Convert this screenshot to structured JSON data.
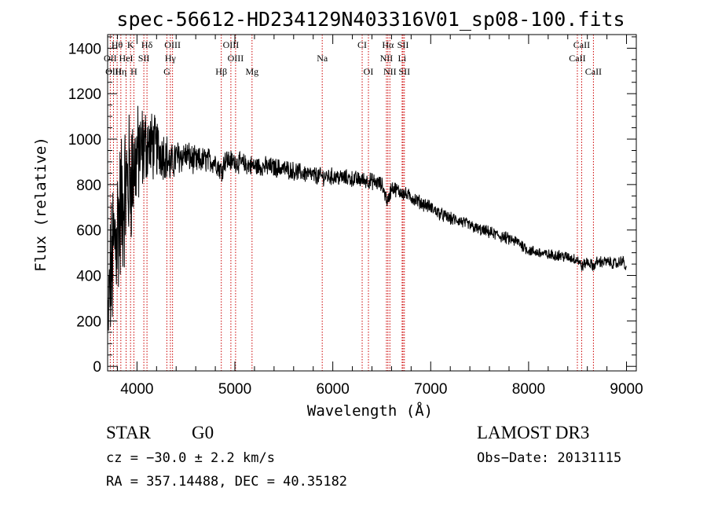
{
  "chart_data": {
    "type": "line",
    "title": "spec-56612-HD234129N403316V01_sp08-100.fits",
    "xlabel": "Wavelength (Å)",
    "ylabel": "Flux (relative)",
    "xlim": [
      3700,
      9100
    ],
    "ylim": [
      -20,
      1460
    ],
    "xticks": [
      4000,
      5000,
      6000,
      7000,
      8000,
      9000
    ],
    "yticks": [
      0,
      200,
      400,
      600,
      800,
      1000,
      1200,
      1400
    ],
    "spectrum_anchor_points": {
      "wavelength": [
        3700,
        3720,
        3760,
        3800,
        3850,
        3900,
        3950,
        4000,
        4050,
        4100,
        4200,
        4300,
        4340,
        4400,
        4500,
        4600,
        4700,
        4800,
        4861,
        4900,
        5000,
        5100,
        5200,
        5300,
        5400,
        5500,
        5600,
        5700,
        5800,
        5900,
        6000,
        6100,
        6200,
        6300,
        6400,
        6500,
        6563,
        6600,
        6700,
        6800,
        6900,
        7000,
        7100,
        7200,
        7300,
        7400,
        7500,
        7600,
        7700,
        7800,
        7900,
        8000,
        8100,
        8200,
        8300,
        8400,
        8500,
        8542,
        8600,
        8662,
        8700,
        8800,
        8900,
        8960,
        9000
      ],
      "flux": [
        150,
        350,
        500,
        620,
        720,
        800,
        850,
        920,
        950,
        980,
        960,
        930,
        880,
        920,
        930,
        900,
        910,
        900,
        860,
        910,
        900,
        890,
        880,
        880,
        875,
        870,
        860,
        850,
        840,
        835,
        835,
        830,
        825,
        820,
        815,
        800,
        720,
        790,
        765,
        745,
        720,
        700,
        670,
        650,
        640,
        620,
        600,
        590,
        575,
        560,
        545,
        510,
        500,
        490,
        490,
        480,
        470,
        440,
        460,
        440,
        460,
        460,
        450,
        470,
        420
      ],
      "noise_amplitude": [
        150,
        250,
        320,
        320,
        300,
        280,
        260,
        200,
        180,
        150,
        120,
        90,
        80,
        70,
        60,
        55,
        50,
        45,
        45,
        45,
        40,
        40,
        40,
        38,
        38,
        36,
        36,
        35,
        35,
        34,
        34,
        33,
        33,
        32,
        32,
        30,
        30,
        30,
        28,
        28,
        27,
        26,
        26,
        25,
        25,
        24,
        24,
        24,
        24,
        24,
        24,
        22,
        22,
        22,
        22,
        22,
        22,
        22,
        22,
        22,
        22,
        22,
        22,
        22,
        22
      ]
    },
    "spectral_lines": [
      {
        "label": "Hθ",
        "wavelength": 3797,
        "row": 0
      },
      {
        "label": "K",
        "wavelength": 3934,
        "row": 0
      },
      {
        "label": "Hδ",
        "wavelength": 4102,
        "row": 0
      },
      {
        "label": "OIII",
        "wavelength": 4363,
        "row": 0
      },
      {
        "label": "OIII",
        "wavelength": 4959,
        "row": 0
      },
      {
        "label": "CI",
        "wavelength": 6300,
        "row": 0
      },
      {
        "label": "Hα",
        "wavelength": 6563,
        "row": 0
      },
      {
        "label": "SII",
        "wavelength": 6717,
        "row": 0
      },
      {
        "label": "CaII",
        "wavelength": 8542,
        "row": 0
      },
      {
        "label": "OII",
        "wavelength": 3727,
        "row": 1
      },
      {
        "label": "HeI",
        "wavelength": 3889,
        "row": 1
      },
      {
        "label": "SII",
        "wavelength": 4070,
        "row": 1
      },
      {
        "label": "Hγ",
        "wavelength": 4341,
        "row": 1
      },
      {
        "label": "OIII",
        "wavelength": 5007,
        "row": 1
      },
      {
        "label": "Na",
        "wavelength": 5892,
        "row": 1
      },
      {
        "label": "NII",
        "wavelength": 6548,
        "row": 1
      },
      {
        "label": "Li",
        "wavelength": 6708,
        "row": 1
      },
      {
        "label": "CaII",
        "wavelength": 8498,
        "row": 1
      },
      {
        "label": "OIII",
        "wavelength": 3760,
        "row": 2
      },
      {
        "label": "Hη",
        "wavelength": 3835,
        "row": 2
      },
      {
        "label": "H",
        "wavelength": 3968,
        "row": 2
      },
      {
        "label": "G",
        "wavelength": 4305,
        "row": 2
      },
      {
        "label": "Hβ",
        "wavelength": 4861,
        "row": 2
      },
      {
        "label": "Mg",
        "wavelength": 5175,
        "row": 2
      },
      {
        "label": "OI",
        "wavelength": 6364,
        "row": 2
      },
      {
        "label": "NII",
        "wavelength": 6583,
        "row": 2
      },
      {
        "label": "SII",
        "wavelength": 6731,
        "row": 2
      },
      {
        "label": "CaII",
        "wavelength": 8662,
        "row": 2
      }
    ],
    "line_color": "#000000",
    "marker_color": "#cc0000"
  },
  "info": {
    "class": "STAR",
    "subclass": "G0",
    "survey": "LAMOST DR3",
    "cz": "cz = −30.0 ± 2.2 km/s",
    "obs_date": "Obs−Date: 20131115",
    "radec": "RA = 357.14488, DEC =  40.35182"
  }
}
